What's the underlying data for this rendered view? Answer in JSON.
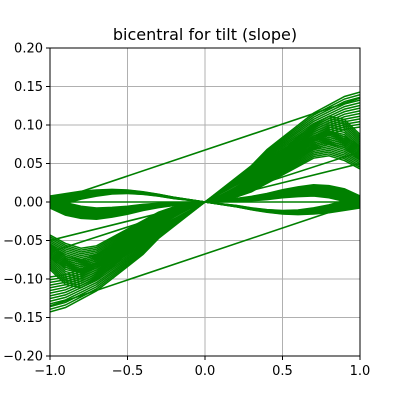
{
  "chart_data": {
    "type": "line",
    "title": "bicentral for tilt (slope)",
    "xlabel": "",
    "ylabel": "",
    "xlim": [
      -1.0,
      1.0
    ],
    "ylim": [
      -0.2,
      0.2
    ],
    "grid": true,
    "legend": "none",
    "line_color": "#008000",
    "x_ticks": [
      {
        "value": -1.0,
        "label": "−1.0"
      },
      {
        "value": -0.5,
        "label": "−0.5"
      },
      {
        "value": 0.0,
        "label": "0.0"
      },
      {
        "value": 0.5,
        "label": "0.5"
      },
      {
        "value": 1.0,
        "label": "1.0"
      }
    ],
    "y_ticks": [
      {
        "value": -0.2,
        "label": "−0.20"
      },
      {
        "value": -0.15,
        "label": "−0.15"
      },
      {
        "value": -0.1,
        "label": "−0.10"
      },
      {
        "value": -0.05,
        "label": "−0.05"
      },
      {
        "value": 0.0,
        "label": "0.00"
      },
      {
        "value": 0.05,
        "label": "0.05"
      },
      {
        "value": 0.1,
        "label": "0.10"
      },
      {
        "value": 0.15,
        "label": "0.15"
      },
      {
        "value": 0.2,
        "label": "0.20"
      }
    ],
    "straight_lines": [
      {
        "x": [
          -1.0,
          1.0
        ],
        "y": [
          0.0,
          0.135
        ]
      },
      {
        "x": [
          -1.0,
          1.0
        ],
        "y": [
          -0.135,
          0.0
        ]
      },
      {
        "x": [
          -1.0,
          1.0
        ],
        "y": [
          -0.065,
          0.065
        ]
      },
      {
        "x": [
          -1.0,
          1.0
        ],
        "y": [
          -0.05,
          0.05
        ]
      },
      {
        "x": [
          -1.0,
          1.0
        ],
        "y": [
          0.0,
          0.0
        ]
      }
    ],
    "curve_families": [
      {
        "x": [
          -1.0,
          -0.9,
          -0.8,
          -0.7,
          -0.6,
          -0.5,
          -0.4,
          -0.3,
          -0.2,
          -0.1,
          0.0,
          0.1,
          0.2,
          0.3,
          0.4,
          0.5,
          0.6,
          0.7,
          0.8,
          0.9,
          1.0
        ],
        "y": [
          -0.135,
          -0.13,
          -0.12,
          -0.11,
          -0.095,
          -0.08,
          -0.065,
          -0.045,
          -0.03,
          -0.015,
          0.0,
          0.015,
          0.03,
          0.045,
          0.065,
          0.08,
          0.095,
          0.11,
          0.12,
          0.13,
          0.135
        ]
      },
      {
        "x": [
          -1.0,
          -0.9,
          -0.8,
          -0.7,
          -0.6,
          -0.5,
          -0.4,
          -0.3,
          -0.2,
          -0.1,
          0.0,
          0.1,
          0.2,
          0.3,
          0.4,
          0.5,
          0.6,
          0.7,
          0.8,
          0.9,
          1.0
        ],
        "y": [
          -0.065,
          -0.078,
          -0.085,
          -0.08,
          -0.065,
          -0.05,
          -0.035,
          -0.02,
          -0.01,
          -0.003,
          0.0,
          0.003,
          0.01,
          0.02,
          0.035,
          0.05,
          0.065,
          0.08,
          0.085,
          0.078,
          0.065
        ]
      },
      {
        "x": [
          -1.0,
          -0.9,
          -0.8,
          -0.7,
          -0.6,
          -0.5,
          -0.4,
          -0.3,
          -0.2,
          -0.1,
          0.0,
          0.1,
          0.2,
          0.3,
          0.4,
          0.5,
          0.6,
          0.7,
          0.8,
          0.9,
          1.0
        ],
        "y": [
          0.0,
          -0.01,
          -0.015,
          -0.017,
          -0.015,
          -0.012,
          -0.008,
          -0.005,
          -0.003,
          -0.001,
          0.0,
          0.001,
          0.003,
          0.005,
          0.008,
          0.012,
          0.015,
          0.017,
          0.015,
          0.01,
          0.0
        ]
      },
      {
        "x": [
          -1.0,
          -0.9,
          -0.8,
          -0.7,
          -0.6,
          -0.5,
          -0.4,
          -0.3,
          -0.2,
          -0.1,
          0.0,
          0.1,
          0.2,
          0.3,
          0.4,
          0.5,
          0.6,
          0.7,
          0.8,
          0.9,
          1.0
        ],
        "y": [
          0.0,
          0.005,
          0.01,
          0.013,
          0.015,
          0.015,
          0.013,
          0.01,
          0.006,
          0.003,
          0.0,
          -0.003,
          -0.006,
          -0.01,
          -0.013,
          -0.015,
          -0.015,
          -0.013,
          -0.01,
          -0.005,
          0.0
        ]
      },
      {
        "x": [
          -1.0,
          -0.9,
          -0.8,
          -0.7,
          -0.6,
          -0.5,
          -0.4,
          -0.3,
          -0.2,
          -0.1,
          0.0,
          0.1,
          0.2,
          0.3,
          0.4,
          0.5,
          0.6,
          0.7,
          0.8,
          0.9,
          1.0
        ],
        "y": [
          -0.08,
          -0.1,
          -0.105,
          -0.095,
          -0.08,
          -0.062,
          -0.045,
          -0.03,
          -0.018,
          -0.008,
          0.0,
          0.008,
          0.018,
          0.03,
          0.045,
          0.062,
          0.08,
          0.095,
          0.105,
          0.1,
          0.08
        ]
      }
    ]
  }
}
